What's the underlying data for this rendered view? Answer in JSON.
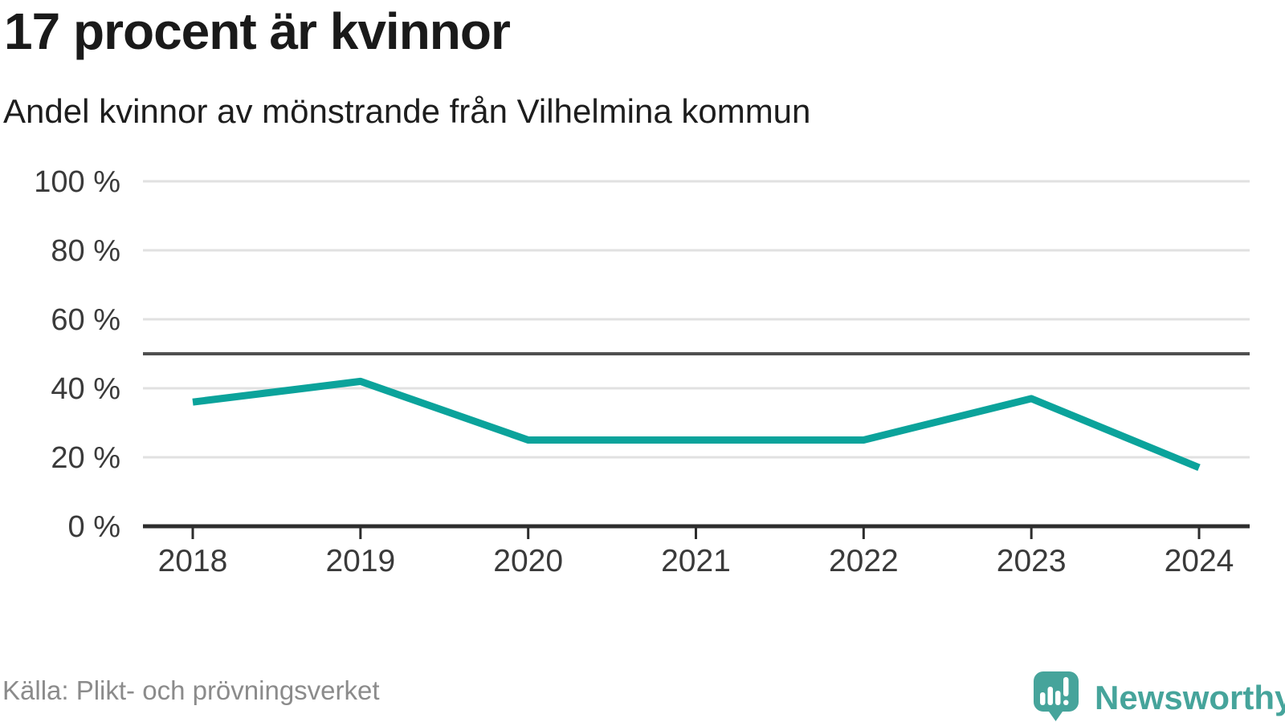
{
  "header": {
    "title": "17 procent är kvinnor",
    "subtitle": "Andel kvinnor av mönstrande från Vilhelmina kommun"
  },
  "chart_data": {
    "type": "line",
    "title": "17 procent är kvinnor",
    "subtitle": "Andel kvinnor av mönstrande från Vilhelmina kommun",
    "x": [
      2018,
      2019,
      2020,
      2021,
      2022,
      2023,
      2024
    ],
    "series": [
      {
        "name": "Andel kvinnor av mönstrande",
        "values": [
          36,
          42,
          25,
          25,
          25,
          37,
          17
        ]
      }
    ],
    "ylim": [
      0,
      100
    ],
    "yticks": [
      0,
      20,
      40,
      60,
      80,
      100
    ],
    "ytick_suffix": " %",
    "reference_line": 50,
    "grid": true,
    "legend": "none",
    "line_color": "#0ba39b",
    "gridline_color": "#e1e1e1",
    "reference_line_color": "#4f4f4f",
    "axis_color": "#2d2d2d",
    "tick_label_color": "#3a3a3a"
  },
  "footer": {
    "source": "Källa: Plikt- och prövningsverket",
    "brand": "Newsworthy",
    "brand_color": "#46a49b",
    "logo_icon": "speech-bubble-bar-chart-exclamation-icon"
  }
}
